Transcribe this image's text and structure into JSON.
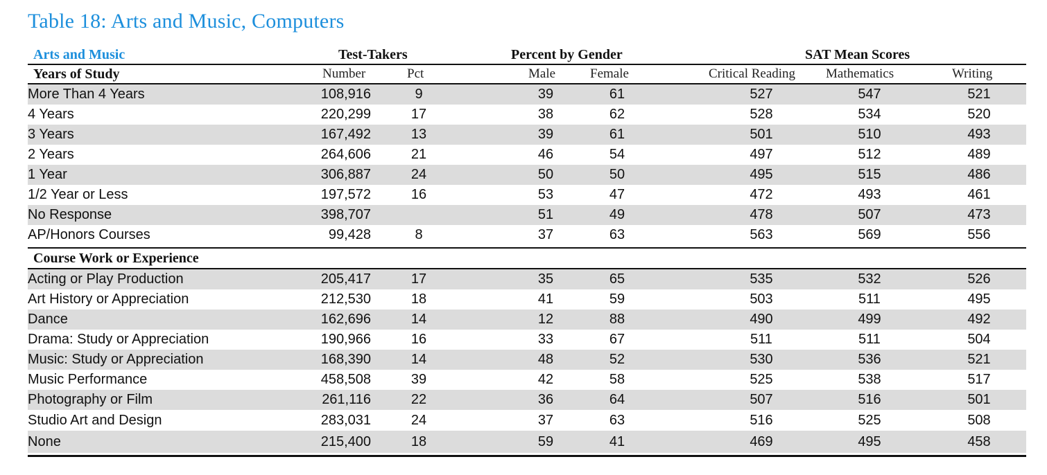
{
  "title": "Table 18: Arts and Music, Computers",
  "colors": {
    "title": "#1d8fdc",
    "section_link": "#1d8fdc",
    "row_shade": "#dcdcdc"
  },
  "header": {
    "section_label": "Arts and Music",
    "group_test_takers": "Test-Takers",
    "group_gender": "Percent by Gender",
    "group_sat": "SAT Mean Scores",
    "years_label": "Years of Study",
    "col_number": "Number",
    "col_pct": "Pct",
    "col_male": "Male",
    "col_female": "Female",
    "col_critical_reading": "Critical Reading",
    "col_mathematics": "Mathematics",
    "col_writing": "Writing"
  },
  "course_section_label": "Course Work or Experience",
  "years_rows": [
    [
      "More Than 4 Years",
      "108,916",
      "9",
      "39",
      "61",
      "527",
      "547",
      "521"
    ],
    [
      "4 Years",
      "220,299",
      "17",
      "38",
      "62",
      "528",
      "534",
      "520"
    ],
    [
      "3 Years",
      "167,492",
      "13",
      "39",
      "61",
      "501",
      "510",
      "493"
    ],
    [
      "2 Years",
      "264,606",
      "21",
      "46",
      "54",
      "497",
      "512",
      "489"
    ],
    [
      "1 Year",
      "306,887",
      "24",
      "50",
      "50",
      "495",
      "515",
      "486"
    ],
    [
      "1/2 Year or Less",
      "197,572",
      "16",
      "53",
      "47",
      "472",
      "493",
      "461"
    ],
    [
      "No Response",
      "398,707",
      "",
      "51",
      "49",
      "478",
      "507",
      "473"
    ],
    [
      "AP/Honors Courses",
      "99,428",
      "8",
      "37",
      "63",
      "563",
      "569",
      "556"
    ]
  ],
  "course_rows": [
    [
      "Acting or Play Production",
      "205,417",
      "17",
      "35",
      "65",
      "535",
      "532",
      "526"
    ],
    [
      "Art History or Appreciation",
      "212,530",
      "18",
      "41",
      "59",
      "503",
      "511",
      "495"
    ],
    [
      "Dance",
      "162,696",
      "14",
      "12",
      "88",
      "490",
      "499",
      "492"
    ],
    [
      "Drama: Study or Appreciation",
      "190,966",
      "16",
      "33",
      "67",
      "511",
      "511",
      "504"
    ],
    [
      "Music: Study or Appreciation",
      "168,390",
      "14",
      "48",
      "52",
      "530",
      "536",
      "521"
    ],
    [
      "Music Performance",
      "458,508",
      "39",
      "42",
      "58",
      "525",
      "538",
      "517"
    ],
    [
      "Photography or Film",
      "261,116",
      "22",
      "36",
      "64",
      "507",
      "516",
      "501"
    ],
    [
      "Studio Art and Design",
      "283,031",
      "24",
      "37",
      "63",
      "516",
      "525",
      "508"
    ],
    [
      "None",
      "215,400",
      "18",
      "59",
      "41",
      "469",
      "495",
      "458"
    ]
  ]
}
